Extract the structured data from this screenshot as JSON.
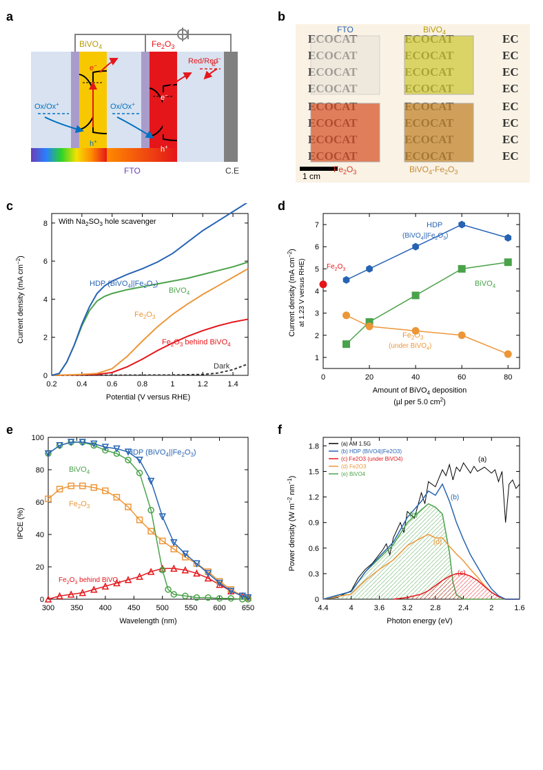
{
  "labels": {
    "a": "a",
    "b": "b",
    "c": "c",
    "d": "d",
    "e": "e",
    "f": "f"
  },
  "panel_a": {
    "bivo4_label": "BiVO4",
    "bivo4_sub": "4",
    "fe2o3_label": "Fe2O3",
    "fe2o3_sub_a": "2",
    "fe2o3_sub_b": "3",
    "fto": "FTO",
    "ce": "C.E",
    "ox": "Ox/Ox+",
    "red": "Red/Red−",
    "e_minus": "e−",
    "h_plus": "h+",
    "colors": {
      "bivo4_fill": "#f7c800",
      "fe2o3_fill": "#e4161a",
      "fto_fill": "#a99cca",
      "ce_fill": "#808080",
      "electrolyte": "#d8e2f0",
      "arrow_blue": "#0070c0",
      "arrow_red": "#e4161a",
      "wire": "#808080"
    }
  },
  "panel_b": {
    "fto": "FTO",
    "bivo4": "BiVO4",
    "bivo4_sub": "4",
    "fe2o3": "Fe2O3",
    "fe2o3_sub_a": "2",
    "fe2o3_sub_b": "3",
    "combo": "BiVO4-Fe2O3",
    "scale": "1 cm",
    "ecocat": "ECOCAT",
    "ec": "EC",
    "colors": {
      "bg": "#faf2e4",
      "fto_tile": "#e9e2d8",
      "bivo4_tile": "#d0ca3c",
      "fe2o3_tile": "#d8572e",
      "combo_tile": "#c58a35",
      "fto_text": "#2663b3",
      "bivo4_text": "#b79a00",
      "fe2o3_text": "#d03a24",
      "combo_text": "#c58a35",
      "ecocat_text": "#222222"
    }
  },
  "panel_c": {
    "title": "With Na2SO3 hole scavenger",
    "xlabel": "Potential (V versus RHE)",
    "ylabel": "Current density (mA cm−2)",
    "xlim": [
      0.2,
      1.5
    ],
    "ylim": [
      0,
      8.5
    ],
    "xticks": [
      0.2,
      0.4,
      0.6,
      0.8,
      1.0,
      1.2,
      1.4
    ],
    "yticks": [
      0,
      2,
      4,
      6,
      8
    ],
    "font_axis": 11,
    "font_tick": 10,
    "series": {
      "hdp": {
        "label": "HDP (BiVO4||Fe2O3)",
        "color": "#2663b3",
        "pts": [
          [
            0.2,
            0
          ],
          [
            0.25,
            0.1
          ],
          [
            0.3,
            0.7
          ],
          [
            0.35,
            1.6
          ],
          [
            0.4,
            2.7
          ],
          [
            0.45,
            3.6
          ],
          [
            0.5,
            4.3
          ],
          [
            0.55,
            4.7
          ],
          [
            0.6,
            4.95
          ],
          [
            0.7,
            5.3
          ],
          [
            0.8,
            5.6
          ],
          [
            0.9,
            5.95
          ],
          [
            1.0,
            6.4
          ],
          [
            1.1,
            7.0
          ],
          [
            1.2,
            7.6
          ],
          [
            1.3,
            8.1
          ],
          [
            1.4,
            8.6
          ],
          [
            1.5,
            9.1
          ]
        ]
      },
      "bivo4": {
        "label": "BiVO4",
        "color": "#4aa24a",
        "pts": [
          [
            0.2,
            0
          ],
          [
            0.25,
            0.1
          ],
          [
            0.3,
            0.7
          ],
          [
            0.35,
            1.6
          ],
          [
            0.4,
            2.6
          ],
          [
            0.45,
            3.4
          ],
          [
            0.5,
            3.9
          ],
          [
            0.55,
            4.15
          ],
          [
            0.6,
            4.3
          ],
          [
            0.7,
            4.5
          ],
          [
            0.8,
            4.65
          ],
          [
            0.9,
            4.8
          ],
          [
            1.0,
            4.95
          ],
          [
            1.1,
            5.1
          ],
          [
            1.2,
            5.3
          ],
          [
            1.3,
            5.5
          ],
          [
            1.4,
            5.7
          ],
          [
            1.5,
            5.95
          ]
        ]
      },
      "fe2o3": {
        "label": "Fe2O3",
        "color": "#ec9638",
        "pts": [
          [
            0.2,
            0
          ],
          [
            0.4,
            0.05
          ],
          [
            0.5,
            0.1
          ],
          [
            0.6,
            0.35
          ],
          [
            0.7,
            1.0
          ],
          [
            0.8,
            1.8
          ],
          [
            0.9,
            2.55
          ],
          [
            1.0,
            3.2
          ],
          [
            1.1,
            3.75
          ],
          [
            1.2,
            4.25
          ],
          [
            1.3,
            4.7
          ],
          [
            1.4,
            5.15
          ],
          [
            1.5,
            5.6
          ]
        ]
      },
      "fe_behind": {
        "label": "Fe2O3 behind BiVO4",
        "color": "#e4161a",
        "pts": [
          [
            0.2,
            0
          ],
          [
            0.5,
            0.05
          ],
          [
            0.6,
            0.15
          ],
          [
            0.7,
            0.45
          ],
          [
            0.8,
            0.85
          ],
          [
            0.9,
            1.3
          ],
          [
            1.0,
            1.7
          ],
          [
            1.1,
            2.05
          ],
          [
            1.2,
            2.35
          ],
          [
            1.3,
            2.6
          ],
          [
            1.4,
            2.8
          ],
          [
            1.5,
            2.95
          ]
        ]
      },
      "dark": {
        "label": "Dark",
        "color": "#333333",
        "dash": "4,3",
        "pts": [
          [
            0.2,
            0
          ],
          [
            1.0,
            0.02
          ],
          [
            1.2,
            0.05
          ],
          [
            1.3,
            0.12
          ],
          [
            1.4,
            0.3
          ],
          [
            1.5,
            0.6
          ]
        ]
      }
    }
  },
  "panel_d": {
    "xlabel": "Amount of BiVO4 deposition",
    "xlabel2": "(µl per 5.0 cm2)",
    "ylabel": "Current density (mA cm−2)",
    "ylabel2": "at 1.23 V versus RHE)",
    "xlim": [
      0,
      85
    ],
    "ylim": [
      0.5,
      7.5
    ],
    "xticks": [
      0,
      20,
      40,
      60,
      80
    ],
    "yticks": [
      1,
      2,
      3,
      4,
      5,
      6,
      7
    ],
    "series": {
      "hdp": {
        "label": "HDP",
        "label2": "(BiVO4||Fe2O3)",
        "color": "#2663b3",
        "marker": "hex",
        "pts": [
          [
            10,
            4.5
          ],
          [
            20,
            5.0
          ],
          [
            40,
            6.0
          ],
          [
            60,
            7.0
          ],
          [
            80,
            6.4
          ]
        ]
      },
      "bivo4": {
        "label": "BiVO4",
        "color": "#4aa24a",
        "marker": "square",
        "pts": [
          [
            10,
            1.6
          ],
          [
            20,
            2.6
          ],
          [
            40,
            3.8
          ],
          [
            60,
            5.0
          ],
          [
            80,
            5.3
          ]
        ]
      },
      "fe_under": {
        "label": "Fe2O3",
        "label2": "(under BiVO4)",
        "color": "#ec9638",
        "marker": "circle",
        "pts": [
          [
            10,
            2.9
          ],
          [
            20,
            2.4
          ],
          [
            40,
            2.2
          ],
          [
            60,
            2.0
          ],
          [
            80,
            1.15
          ]
        ]
      },
      "fe2o3": {
        "label": "Fe2O3",
        "color": "#e4161a",
        "marker": "circle",
        "pts": [
          [
            0,
            4.3
          ]
        ]
      }
    }
  },
  "panel_e": {
    "xlabel": "Wavelength (nm)",
    "ylabel": "IPCE (%)",
    "xlim": [
      300,
      650
    ],
    "ylim": [
      0,
      100
    ],
    "xticks": [
      300,
      350,
      400,
      450,
      500,
      550,
      600,
      650
    ],
    "yticks": [
      0,
      20,
      40,
      60,
      80,
      100
    ],
    "series": {
      "hdp": {
        "label": "HDP (BiVO4||Fe2O3)",
        "color": "#2663b3",
        "marker": "tri",
        "pts": [
          [
            300,
            90
          ],
          [
            320,
            95
          ],
          [
            340,
            97
          ],
          [
            360,
            97
          ],
          [
            380,
            96
          ],
          [
            400,
            94
          ],
          [
            420,
            93
          ],
          [
            440,
            91
          ],
          [
            460,
            86
          ],
          [
            480,
            73
          ],
          [
            500,
            51
          ],
          [
            520,
            35
          ],
          [
            540,
            28
          ],
          [
            560,
            22
          ],
          [
            580,
            16
          ],
          [
            600,
            10
          ],
          [
            620,
            5
          ],
          [
            640,
            2
          ],
          [
            650,
            1
          ]
        ]
      },
      "bivo4": {
        "label": "BiVO4",
        "color": "#4aa24a",
        "marker": "circle",
        "pts": [
          [
            300,
            90
          ],
          [
            320,
            95
          ],
          [
            340,
            97
          ],
          [
            360,
            97
          ],
          [
            380,
            95
          ],
          [
            400,
            92
          ],
          [
            420,
            90
          ],
          [
            440,
            86
          ],
          [
            460,
            78
          ],
          [
            480,
            55
          ],
          [
            500,
            18
          ],
          [
            510,
            6
          ],
          [
            520,
            3
          ],
          [
            540,
            2
          ],
          [
            560,
            1
          ],
          [
            580,
            1
          ],
          [
            600,
            0.5
          ],
          [
            620,
            0.5
          ],
          [
            640,
            0
          ],
          [
            650,
            0
          ]
        ]
      },
      "fe2o3": {
        "label": "Fe2O3",
        "color": "#ec9638",
        "marker": "square",
        "pts": [
          [
            300,
            62
          ],
          [
            320,
            68
          ],
          [
            340,
            70
          ],
          [
            360,
            70
          ],
          [
            380,
            69
          ],
          [
            400,
            67
          ],
          [
            420,
            63
          ],
          [
            440,
            57
          ],
          [
            460,
            49
          ],
          [
            480,
            42
          ],
          [
            500,
            36
          ],
          [
            520,
            31
          ],
          [
            540,
            26
          ],
          [
            560,
            22
          ],
          [
            580,
            17
          ],
          [
            600,
            11
          ],
          [
            620,
            6
          ],
          [
            640,
            2
          ],
          [
            650,
            1
          ]
        ]
      },
      "fe_behind": {
        "label": "Fe2O3 behind BiVO4",
        "color": "#e4161a",
        "marker": "tri",
        "pts": [
          [
            300,
            0
          ],
          [
            320,
            2
          ],
          [
            340,
            3
          ],
          [
            360,
            4
          ],
          [
            380,
            6
          ],
          [
            400,
            8
          ],
          [
            420,
            10
          ],
          [
            440,
            12
          ],
          [
            460,
            14
          ],
          [
            480,
            17
          ],
          [
            500,
            19
          ],
          [
            520,
            19
          ],
          [
            540,
            18
          ],
          [
            560,
            16
          ],
          [
            580,
            13
          ],
          [
            600,
            9
          ],
          [
            620,
            5
          ],
          [
            640,
            2
          ],
          [
            650,
            1
          ]
        ]
      }
    }
  },
  "panel_f": {
    "xlabel": "Photon energy (eV)",
    "ylabel": "Power density (W m−2 nm−1)",
    "xlim": [
      4.4,
      1.6
    ],
    "ylim": [
      0,
      1.9
    ],
    "xticks": [
      4.4,
      4.0,
      3.6,
      3.2,
      2.8,
      2.4,
      2.0,
      1.6
    ],
    "yticks": [
      0,
      0.3,
      0.6,
      0.9,
      1.2,
      1.5,
      1.8
    ],
    "legend": {
      "a": "(a) AM 1.5G",
      "b": "(b) HDP (BiVO4||Fe2O3)",
      "c": "(c) Fe2O3 (under BiVO4)",
      "d": "(d) Fe2O3",
      "e": "(e) BiVO4"
    },
    "colors": {
      "a": "#000000",
      "b": "#2663b3",
      "c": "#e4161a",
      "d": "#ec9638",
      "e": "#4aa24a"
    },
    "am15g": [
      [
        4.4,
        0
      ],
      [
        4.2,
        0.02
      ],
      [
        4.0,
        0.1
      ],
      [
        3.9,
        0.25
      ],
      [
        3.8,
        0.35
      ],
      [
        3.7,
        0.42
      ],
      [
        3.55,
        0.58
      ],
      [
        3.5,
        0.65
      ],
      [
        3.45,
        0.52
      ],
      [
        3.4,
        0.72
      ],
      [
        3.3,
        0.9
      ],
      [
        3.25,
        0.78
      ],
      [
        3.2,
        1.03
      ],
      [
        3.1,
        0.95
      ],
      [
        3.0,
        1.25
      ],
      [
        2.95,
        1.12
      ],
      [
        2.9,
        1.38
      ],
      [
        2.8,
        1.32
      ],
      [
        2.7,
        1.52
      ],
      [
        2.65,
        1.45
      ],
      [
        2.6,
        1.58
      ],
      [
        2.55,
        1.4
      ],
      [
        2.5,
        1.55
      ],
      [
        2.45,
        1.5
      ],
      [
        2.4,
        1.6
      ],
      [
        2.3,
        1.48
      ],
      [
        2.25,
        1.56
      ],
      [
        2.2,
        1.5
      ],
      [
        2.1,
        1.55
      ],
      [
        2.0,
        1.48
      ],
      [
        1.95,
        1.52
      ],
      [
        1.9,
        1.38
      ],
      [
        1.85,
        1.5
      ],
      [
        1.8,
        0.9
      ],
      [
        1.75,
        1.35
      ],
      [
        1.7,
        1.4
      ],
      [
        1.65,
        1.3
      ],
      [
        1.6,
        1.35
      ]
    ],
    "hdp": [
      [
        4.4,
        0
      ],
      [
        4.0,
        0.09
      ],
      [
        3.8,
        0.32
      ],
      [
        3.6,
        0.5
      ],
      [
        3.4,
        0.67
      ],
      [
        3.2,
        0.96
      ],
      [
        3.0,
        1.15
      ],
      [
        2.9,
        1.27
      ],
      [
        2.8,
        1.22
      ],
      [
        2.7,
        1.35
      ],
      [
        2.6,
        1.15
      ],
      [
        2.5,
        0.9
      ],
      [
        2.4,
        0.7
      ],
      [
        2.3,
        0.52
      ],
      [
        2.2,
        0.38
      ],
      [
        2.1,
        0.24
      ],
      [
        2.0,
        0.12
      ],
      [
        1.9,
        0.04
      ],
      [
        1.8,
        0
      ],
      [
        1.6,
        0
      ]
    ],
    "fe_under": [
      [
        3.4,
        0
      ],
      [
        3.2,
        0.02
      ],
      [
        3.0,
        0.06
      ],
      [
        2.9,
        0.1
      ],
      [
        2.8,
        0.16
      ],
      [
        2.7,
        0.22
      ],
      [
        2.6,
        0.27
      ],
      [
        2.5,
        0.3
      ],
      [
        2.4,
        0.3
      ],
      [
        2.3,
        0.27
      ],
      [
        2.2,
        0.22
      ],
      [
        2.1,
        0.15
      ],
      [
        2.0,
        0.08
      ],
      [
        1.9,
        0.03
      ],
      [
        1.8,
        0
      ],
      [
        1.6,
        0
      ]
    ],
    "fe2o3": [
      [
        4.4,
        0
      ],
      [
        4.0,
        0.06
      ],
      [
        3.8,
        0.22
      ],
      [
        3.6,
        0.35
      ],
      [
        3.4,
        0.46
      ],
      [
        3.2,
        0.63
      ],
      [
        3.0,
        0.72
      ],
      [
        2.9,
        0.76
      ],
      [
        2.8,
        0.72
      ],
      [
        2.7,
        0.72
      ],
      [
        2.6,
        0.62
      ],
      [
        2.5,
        0.53
      ],
      [
        2.4,
        0.45
      ],
      [
        2.3,
        0.35
      ],
      [
        2.2,
        0.26
      ],
      [
        2.1,
        0.16
      ],
      [
        2.0,
        0.08
      ],
      [
        1.9,
        0.03
      ],
      [
        1.8,
        0
      ],
      [
        1.6,
        0
      ]
    ],
    "bivo4": [
      [
        4.4,
        0
      ],
      [
        4.0,
        0.09
      ],
      [
        3.8,
        0.32
      ],
      [
        3.6,
        0.48
      ],
      [
        3.4,
        0.64
      ],
      [
        3.2,
        0.9
      ],
      [
        3.0,
        1.05
      ],
      [
        2.9,
        1.12
      ],
      [
        2.8,
        1.08
      ],
      [
        2.7,
        1.0
      ],
      [
        2.6,
        0.55
      ],
      [
        2.55,
        0.2
      ],
      [
        2.5,
        0.05
      ],
      [
        2.4,
        0
      ],
      [
        1.6,
        0
      ]
    ]
  }
}
